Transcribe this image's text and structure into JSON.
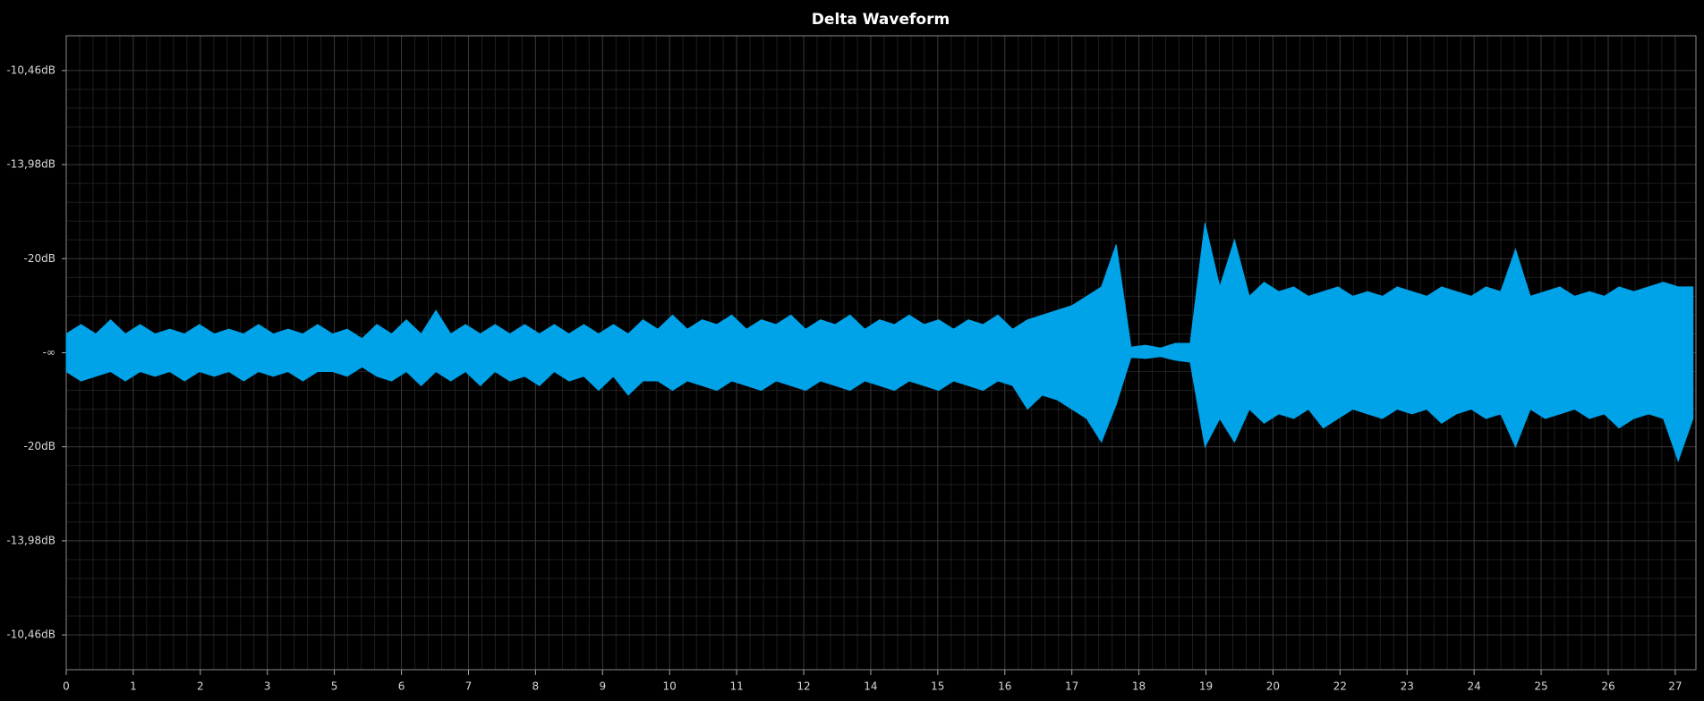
{
  "chart_data": {
    "type": "waveform",
    "title": "Delta Waveform",
    "x": [
      0,
      0.25,
      0.5,
      0.75,
      1,
      1.25,
      1.5,
      1.75,
      2,
      2.25,
      2.5,
      2.75,
      3,
      3.25,
      3.5,
      3.75,
      4,
      4.25,
      4.5,
      4.75,
      5,
      5.25,
      5.5,
      5.75,
      6,
      6.25,
      6.5,
      6.75,
      7,
      7.25,
      7.5,
      7.75,
      8,
      8.25,
      8.5,
      8.75,
      9,
      9.25,
      9.5,
      9.75,
      10,
      10.25,
      10.5,
      10.75,
      11,
      11.25,
      11.5,
      11.75,
      12,
      12.25,
      12.5,
      12.75,
      13,
      13.25,
      13.5,
      13.75,
      14,
      14.25,
      14.5,
      14.75,
      15,
      15.25,
      15.5,
      15.75,
      16,
      16.25,
      16.5,
      16.75,
      17,
      17.25,
      17.5,
      17.75,
      18,
      18.25,
      18.5,
      18.75,
      19,
      19.25,
      19.5,
      19.75,
      20,
      20.25,
      20.5,
      20.75,
      21,
      21.25,
      21.5,
      21.75,
      22,
      22.25,
      22.5,
      22.75,
      23,
      23.25,
      23.5,
      23.75,
      24,
      24.25,
      24.5,
      24.75,
      25,
      25.25,
      25.5,
      25.75,
      26,
      26.25,
      26.5,
      26.75,
      27,
      27.25,
      27.5
    ],
    "series": [
      {
        "color": "#00a2e8",
        "values": [
          0.02,
          0.03,
          0.02,
          0.035,
          0.02,
          0.03,
          0.02,
          0.025,
          0.02,
          0.03,
          0.02,
          0.025,
          0.02,
          0.03,
          0.02,
          0.025,
          0.02,
          0.03,
          0.02,
          0.025,
          0.015,
          0.03,
          0.02,
          0.035,
          0.02,
          0.045,
          0.02,
          0.03,
          0.02,
          0.03,
          0.02,
          0.03,
          0.02,
          0.03,
          0.02,
          0.03,
          0.02,
          0.03,
          0.02,
          0.035,
          0.025,
          0.04,
          0.025,
          0.035,
          0.03,
          0.04,
          0.025,
          0.035,
          0.03,
          0.04,
          0.025,
          0.035,
          0.03,
          0.04,
          0.025,
          0.035,
          0.03,
          0.04,
          0.03,
          0.035,
          0.025,
          0.035,
          0.03,
          0.04,
          0.025,
          0.035,
          0.04,
          0.045,
          0.05,
          0.06,
          0.07,
          0.115,
          0.006,
          0.008,
          0.005,
          0.01,
          0.01,
          0.138,
          0.07,
          0.12,
          0.06,
          0.075,
          0.065,
          0.07,
          0.06,
          0.065,
          0.07,
          0.06,
          0.065,
          0.06,
          0.07,
          0.065,
          0.06,
          0.07,
          0.065,
          0.06,
          0.07,
          0.065,
          0.11,
          0.06,
          0.065,
          0.07,
          0.06,
          0.065,
          0.06,
          0.07,
          0.065,
          0.07,
          0.075,
          0.07,
          0.07
        ]
      },
      {
        "color": "#00a2e8",
        "values": [
          -0.02,
          -0.03,
          -0.025,
          -0.02,
          -0.03,
          -0.02,
          -0.025,
          -0.02,
          -0.03,
          -0.02,
          -0.025,
          -0.02,
          -0.03,
          -0.02,
          -0.025,
          -0.02,
          -0.03,
          -0.02,
          -0.02,
          -0.025,
          -0.015,
          -0.025,
          -0.03,
          -0.02,
          -0.035,
          -0.02,
          -0.03,
          -0.02,
          -0.035,
          -0.02,
          -0.03,
          -0.025,
          -0.035,
          -0.02,
          -0.03,
          -0.025,
          -0.04,
          -0.025,
          -0.045,
          -0.03,
          -0.03,
          -0.04,
          -0.03,
          -0.035,
          -0.04,
          -0.03,
          -0.035,
          -0.04,
          -0.03,
          -0.035,
          -0.04,
          -0.03,
          -0.035,
          -0.04,
          -0.03,
          -0.035,
          -0.04,
          -0.03,
          -0.035,
          -0.04,
          -0.03,
          -0.035,
          -0.04,
          -0.03,
          -0.035,
          -0.06,
          -0.045,
          -0.05,
          -0.06,
          -0.07,
          -0.095,
          -0.055,
          -0.005,
          -0.006,
          -0.004,
          -0.008,
          -0.01,
          -0.1,
          -0.07,
          -0.095,
          -0.06,
          -0.075,
          -0.065,
          -0.07,
          -0.06,
          -0.08,
          -0.07,
          -0.06,
          -0.065,
          -0.07,
          -0.06,
          -0.065,
          -0.06,
          -0.075,
          -0.065,
          -0.06,
          -0.07,
          -0.065,
          -0.1,
          -0.06,
          -0.07,
          -0.065,
          -0.06,
          -0.07,
          -0.065,
          -0.08,
          -0.07,
          -0.065,
          -0.07,
          -0.115,
          -0.07
        ]
      }
    ],
    "xlim": [
      0,
      27.55
    ],
    "xticks": [
      0,
      {
        "value": 1.133,
        "label": "1"
      },
      {
        "value": 2.267,
        "label": "2"
      },
      {
        "value": 3.4,
        "label": "3"
      },
      {
        "value": 4.533,
        "label": "5"
      },
      {
        "value": 5.667,
        "label": "6"
      },
      {
        "value": 6.8,
        "label": "7"
      },
      {
        "value": 7.933,
        "label": "8"
      },
      {
        "value": 9.067,
        "label": "9"
      },
      {
        "value": 10.2,
        "label": "10"
      },
      {
        "value": 11.333,
        "label": "11"
      },
      {
        "value": 12.467,
        "label": "12"
      },
      {
        "value": 13.6,
        "label": "14"
      },
      {
        "value": 14.733,
        "label": "15"
      },
      {
        "value": 15.867,
        "label": "16"
      },
      {
        "value": 17,
        "label": "17"
      },
      {
        "value": 18.133,
        "label": "18"
      },
      {
        "value": 19.267,
        "label": "19"
      },
      {
        "value": 20.4,
        "label": "20"
      },
      {
        "value": 21.533,
        "label": "22"
      },
      {
        "value": 22.667,
        "label": "23"
      },
      {
        "value": 23.8,
        "label": "24"
      },
      {
        "value": 24.933,
        "label": "25"
      },
      {
        "value": 26.067,
        "label": "26"
      },
      {
        "value": 27.2,
        "label": "27"
      }
    ],
    "ylim": [
      -0.337,
      0.337
    ],
    "yticks": [
      {
        "value": 0.3,
        "label": "-10,46dB"
      },
      {
        "value": 0.2,
        "label": "-13,98dB"
      },
      {
        "value": 0.1,
        "label": "-20dB"
      },
      {
        "value": 0,
        "label": "-∞"
      },
      {
        "value": -0.1,
        "label": "-20dB"
      },
      {
        "value": -0.2,
        "label": "-13,98dB"
      },
      {
        "value": -0.3,
        "label": "-10,46dB"
      }
    ],
    "grid": true
  }
}
